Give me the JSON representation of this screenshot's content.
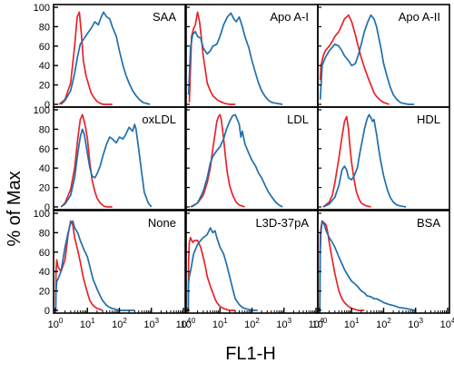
{
  "figure": {
    "ylabel": "% of Max",
    "xlabel": "FL1-H"
  },
  "colors": {
    "control": "#e8232a",
    "sample": "#1f6fae"
  },
  "chart_data": {
    "type": "line",
    "layout": "3x3 grid of flow-cytometry histograms (shared axes)",
    "xscale": "log",
    "xlim": [
      1,
      10000
    ],
    "x_ticks": [
      "10^0",
      "10^1",
      "10^2",
      "10^3",
      "10^4"
    ],
    "ylim": [
      0,
      100
    ],
    "y_ticks": [
      0,
      20,
      40,
      60,
      80,
      100
    ],
    "xlabel": "FL1-H",
    "ylabel": "% of Max",
    "grid": false,
    "panels": [
      {
        "label": "SAA",
        "series": [
          {
            "color": "red",
            "x": [
              1.3,
              2,
              3,
              4,
              4.8,
              5.6,
              6.5,
              7.5,
              9,
              11,
              13,
              16,
              20,
              25,
              32,
              40,
              60
            ],
            "y": [
              0,
              5,
              22,
              60,
              90,
              95,
              72,
              45,
              30,
              20,
              12,
              7,
              3,
              1,
              0,
              0,
              0
            ]
          },
          {
            "color": "blue",
            "x": [
              1.5,
              2,
              3,
              4,
              5,
              6,
              8,
              10,
              13,
              17,
              22,
              27,
              32,
              40,
              50,
              60,
              80,
              100,
              130,
              160,
              200,
              260,
              330,
              420,
              550,
              700,
              900
            ],
            "y": [
              0,
              4,
              14,
              32,
              50,
              62,
              68,
              73,
              78,
              85,
              82,
              90,
              95,
              90,
              88,
              80,
              70,
              55,
              40,
              30,
              22,
              14,
              9,
              5,
              2,
              1,
              0
            ]
          }
        ]
      },
      {
        "label": "Apo A-I",
        "series": [
          {
            "color": "red",
            "x": [
              1.1,
              1.3,
              1.5,
              1.7,
              2,
              2.3,
              2.6,
              3,
              3.5,
              4,
              5,
              6,
              8,
              10,
              14,
              20,
              30
            ],
            "y": [
              2,
              70,
              78,
              82,
              95,
              85,
              70,
              50,
              35,
              22,
              14,
              9,
              5,
              3,
              1,
              0,
              0
            ]
          },
          {
            "color": "blue",
            "x": [
              1.05,
              1.2,
              1.4,
              1.7,
              2,
              2.5,
              3,
              4,
              5,
              6,
              8,
              10,
              13,
              17,
              22,
              27,
              32,
              40,
              50,
              60,
              80,
              100,
              130,
              160,
              200,
              260,
              330,
              420,
              600,
              900
            ],
            "y": [
              10,
              58,
              72,
              75,
              70,
              68,
              58,
              52,
              55,
              60,
              62,
              70,
              82,
              90,
              94,
              88,
              85,
              90,
              80,
              70,
              58,
              45,
              32,
              22,
              14,
              8,
              4,
              2,
              1,
              0
            ]
          }
        ]
      },
      {
        "label": "Apo A-II",
        "series": [
          {
            "color": "red",
            "x": [
              1.05,
              1.1,
              1.3,
              1.5,
              2,
              2.5,
              3,
              4,
              5,
              6,
              7,
              8,
              10,
              13,
              16,
              20,
              25,
              32,
              40,
              50,
              60,
              80,
              100,
              150
            ],
            "y": [
              25,
              40,
              50,
              55,
              60,
              65,
              70,
              75,
              82,
              88,
              90,
              92,
              85,
              72,
              60,
              48,
              38,
              28,
              20,
              12,
              8,
              4,
              2,
              0
            ]
          },
          {
            "color": "blue",
            "x": [
              1.05,
              1.2,
              1.5,
              2,
              3,
              4,
              5,
              6,
              8,
              10,
              13,
              16,
              20,
              25,
              32,
              40,
              50,
              60,
              80,
              100,
              130,
              160,
              200,
              260,
              330,
              420,
              600,
              900
            ],
            "y": [
              5,
              40,
              48,
              55,
              62,
              60,
              55,
              50,
              45,
              40,
              42,
              50,
              62,
              75,
              85,
              92,
              88,
              80,
              60,
              42,
              28,
              18,
              10,
              5,
              2,
              1,
              0,
              0
            ]
          }
        ]
      },
      {
        "label": "oxLDL",
        "series": [
          {
            "color": "red",
            "x": [
              1.5,
              2,
              3,
              4,
              5,
              6,
              7,
              8,
              9,
              10,
              12,
              14,
              17,
              20,
              25,
              32,
              40,
              60
            ],
            "y": [
              0,
              4,
              18,
              40,
              70,
              90,
              95,
              88,
              80,
              70,
              45,
              28,
              16,
              9,
              4,
              1,
              0,
              0
            ]
          },
          {
            "color": "blue",
            "x": [
              1.5,
              2,
              3,
              4,
              5,
              6,
              7,
              8,
              10,
              12,
              14,
              17,
              20,
              25,
              30,
              40,
              50,
              60,
              80,
              100,
              130,
              160,
              200,
              260,
              300,
              330,
              400,
              500,
              600,
              800,
              1000
            ],
            "y": [
              0,
              3,
              12,
              30,
              55,
              72,
              80,
              75,
              55,
              40,
              32,
              30,
              34,
              42,
              52,
              65,
              72,
              70,
              66,
              72,
              70,
              75,
              82,
              78,
              85,
              80,
              60,
              35,
              15,
              4,
              0
            ]
          }
        ]
      },
      {
        "label": "LDL",
        "series": [
          {
            "color": "red",
            "x": [
              1.3,
              2,
              3,
              4,
              5,
              6,
              7,
              8,
              9,
              10,
              11,
              13,
              15,
              17,
              20,
              25,
              32,
              40,
              60
            ],
            "y": [
              0,
              4,
              12,
              25,
              40,
              60,
              75,
              88,
              93,
              95,
              90,
              70,
              50,
              35,
              22,
              12,
              5,
              2,
              0
            ]
          },
          {
            "color": "blue",
            "x": [
              1.2,
              2,
              3,
              4,
              5,
              6,
              8,
              10,
              13,
              16,
              20,
              25,
              30,
              35,
              40,
              45,
              50,
              60,
              80,
              100,
              130,
              160,
              200,
              260,
              330,
              420,
              550,
              700,
              900
            ],
            "y": [
              0,
              4,
              16,
              30,
              45,
              52,
              58,
              62,
              70,
              80,
              88,
              94,
              95,
              90,
              85,
              72,
              78,
              65,
              55,
              48,
              42,
              35,
              30,
              22,
              15,
              10,
              5,
              2,
              0
            ]
          }
        ]
      },
      {
        "label": "HDL",
        "series": [
          {
            "color": "red",
            "x": [
              1.3,
              2,
              2.5,
              3,
              4,
              5,
              6,
              7,
              8,
              9,
              10,
              12,
              14,
              17,
              20,
              25,
              30,
              40
            ],
            "y": [
              0,
              5,
              12,
              25,
              50,
              72,
              88,
              93,
              80,
              60,
              45,
              28,
              16,
              8,
              4,
              2,
              1,
              0
            ]
          },
          {
            "color": "blue",
            "x": [
              1.3,
              2,
              3,
              4,
              5,
              6,
              7,
              8,
              10,
              12,
              15,
              18,
              22,
              25,
              30,
              35,
              40,
              45,
              50,
              60,
              70,
              80,
              100,
              130,
              160,
              200,
              260,
              330,
              500
            ],
            "y": [
              0,
              3,
              10,
              22,
              38,
              42,
              38,
              30,
              28,
              32,
              40,
              55,
              70,
              80,
              90,
              95,
              92,
              88,
              90,
              75,
              60,
              48,
              32,
              18,
              10,
              5,
              2,
              1,
              0
            ]
          }
        ]
      },
      {
        "label": "None",
        "series": [
          {
            "color": "red",
            "x": [
              1.02,
              1.05,
              1.1,
              1.2,
              1.5,
              2,
              2.5,
              3,
              3.5,
              4,
              5,
              6,
              7,
              8,
              10,
              12,
              15,
              20,
              25,
              30
            ],
            "y": [
              0,
              40,
              52,
              45,
              40,
              52,
              78,
              92,
              88,
              75,
              62,
              50,
              38,
              30,
              18,
              10,
              5,
              2,
              1,
              0
            ]
          },
          {
            "color": "blue",
            "x": [
              1.02,
              1.05,
              1.1,
              1.2,
              1.5,
              2,
              2.5,
              3,
              3.5,
              4,
              5,
              6,
              8,
              10,
              12,
              15,
              20,
              25,
              30,
              40,
              50,
              60,
              80,
              100,
              130,
              160,
              200,
              260,
              300
            ],
            "y": [
              0,
              20,
              30,
              32,
              40,
              65,
              80,
              90,
              92,
              85,
              80,
              72,
              62,
              55,
              45,
              32,
              22,
              15,
              10,
              5,
              3,
              2,
              1,
              0,
              0,
              0,
              0,
              0,
              0
            ]
          }
        ]
      },
      {
        "label": "L3D-37pA",
        "series": [
          {
            "color": "red",
            "x": [
              1.02,
              1.05,
              1.1,
              1.2,
              1.4,
              1.6,
              2,
              2.5,
              3,
              3.5,
              4,
              5,
              6,
              7,
              8,
              10,
              13,
              16,
              20,
              30
            ],
            "y": [
              0,
              50,
              70,
              75,
              70,
              72,
              72,
              65,
              55,
              45,
              35,
              25,
              18,
              12,
              8,
              4,
              2,
              1,
              0,
              0
            ]
          },
          {
            "color": "blue",
            "x": [
              1.02,
              1.05,
              1.1,
              1.2,
              1.5,
              2,
              2.5,
              3,
              4,
              5,
              6,
              7,
              8,
              10,
              13,
              16,
              20,
              25,
              30,
              40,
              50,
              60,
              80,
              100,
              150
            ],
            "y": [
              0,
              28,
              35,
              40,
              58,
              68,
              72,
              75,
              78,
              85,
              80,
              82,
              75,
              65,
              58,
              48,
              35,
              22,
              12,
              6,
              3,
              2,
              1,
              0,
              0
            ]
          }
        ]
      },
      {
        "label": "BSA",
        "series": [
          {
            "color": "red",
            "x": [
              1.01,
              1.02,
              1.05,
              1.1,
              1.2,
              1.4,
              1.6,
              1.8,
              2,
              2.5,
              3,
              3.5,
              4,
              5,
              6,
              8,
              10,
              13,
              16,
              25
            ],
            "y": [
              0,
              30,
              78,
              85,
              92,
              90,
              88,
              80,
              70,
              52,
              38,
              28,
              20,
              12,
              8,
              4,
              2,
              1,
              0,
              0
            ]
          },
          {
            "color": "blue",
            "x": [
              1.01,
              1.02,
              1.05,
              1.1,
              1.2,
              1.4,
              1.6,
              2,
              2.5,
              3,
              4,
              5,
              6,
              8,
              10,
              12,
              15,
              20,
              25,
              30,
              40,
              50,
              60,
              80,
              100,
              150,
              200,
              300,
              500,
              700,
              1000
            ],
            "y": [
              0,
              10,
              60,
              80,
              92,
              88,
              82,
              75,
              70,
              65,
              55,
              48,
              42,
              35,
              30,
              28,
              25,
              20,
              18,
              15,
              14,
              12,
              12,
              10,
              8,
              6,
              5,
              3,
              2,
              1,
              0
            ]
          }
        ]
      }
    ]
  }
}
